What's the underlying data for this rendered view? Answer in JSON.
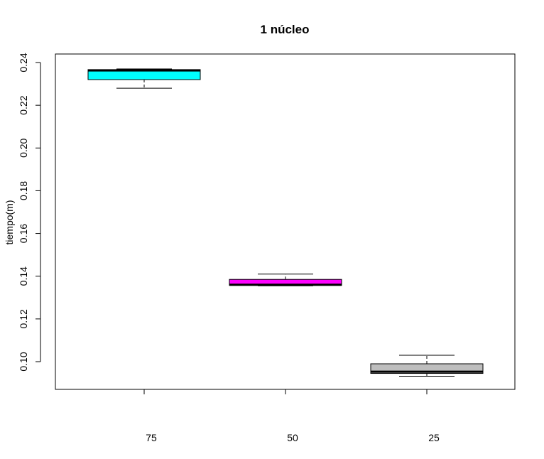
{
  "chart_data": {
    "type": "boxplot",
    "title": "1 núcleo",
    "xlabel": "",
    "ylabel": "tiempo(m)",
    "ylim": [
      0.088,
      0.242
    ],
    "yticks": [
      "0.10",
      "0.12",
      "0.14",
      "0.16",
      "0.18",
      "0.20",
      "0.22",
      "0.24"
    ],
    "categories": [
      "75",
      "50",
      "25"
    ],
    "boxes": [
      {
        "category": "75",
        "min": 0.228,
        "q1": 0.232,
        "median": 0.2363,
        "q3": 0.2367,
        "max": 0.237,
        "color": "#00ffff"
      },
      {
        "category": "50",
        "min": 0.1355,
        "q1": 0.1357,
        "median": 0.136,
        "q3": 0.1385,
        "max": 0.141,
        "color": "#ff00ff"
      },
      {
        "category": "25",
        "min": 0.0932,
        "q1": 0.0945,
        "median": 0.0953,
        "q3": 0.099,
        "max": 0.103,
        "color": "#bebebe"
      }
    ],
    "grid": false
  }
}
